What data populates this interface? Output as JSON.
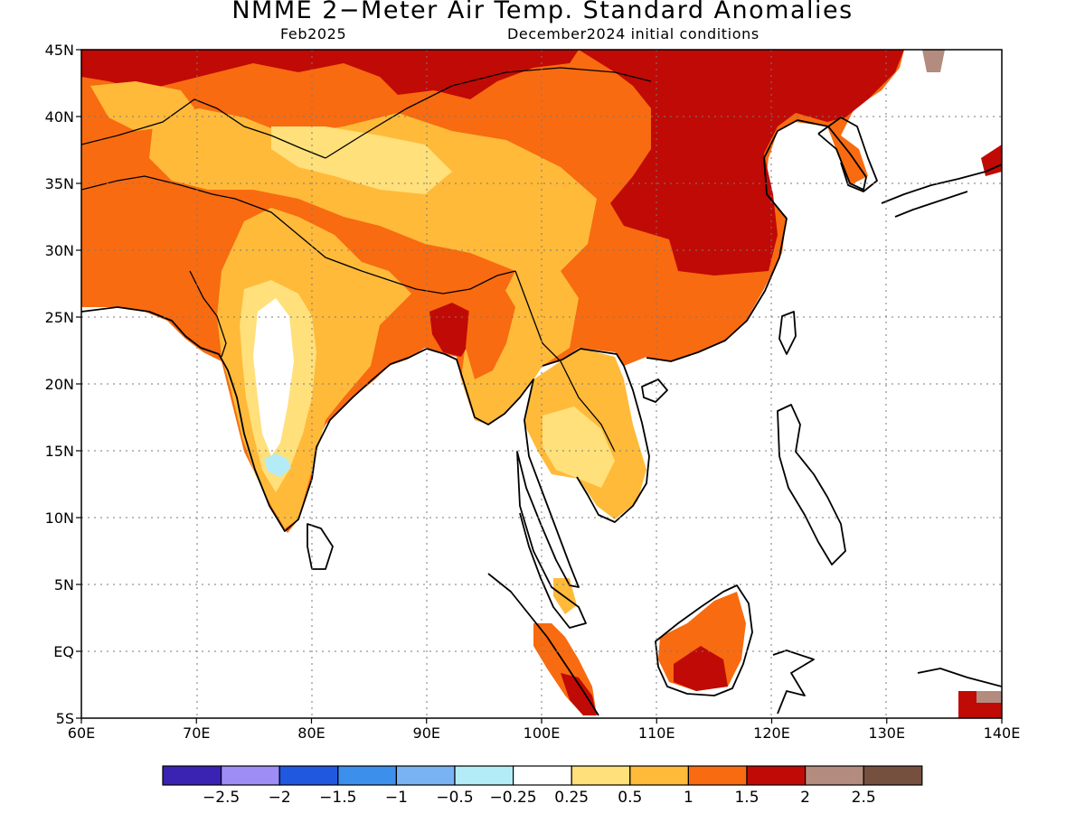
{
  "title": "NMME 2−Meter Air Temp. Standard Anomalies",
  "subtitle_left": "Feb2025",
  "subtitle_right": "December2024 initial conditions",
  "map": {
    "lon_range": [
      60,
      140
    ],
    "lat_range": [
      -5,
      45
    ],
    "lon_ticks": [
      "60E",
      "70E",
      "80E",
      "90E",
      "100E",
      "110E",
      "120E",
      "130E",
      "140E"
    ],
    "lat_ticks": [
      "45N",
      "40N",
      "35N",
      "30N",
      "25N",
      "20N",
      "15N",
      "10N",
      "5N",
      "EQ",
      "5S"
    ],
    "gridlines": "dotted"
  },
  "colorbar": {
    "colors": [
      "#3a22b3",
      "#9d8df5",
      "#2058e0",
      "#3d8fec",
      "#79b3f3",
      "#b3ecf7",
      "#ffffff",
      "#ffe07a",
      "#ffba3a",
      "#f86b10",
      "#c00a06",
      "#b38b7f",
      "#76503f"
    ],
    "labels": [
      "−2.5",
      "−2",
      "−1.5",
      "−1",
      "−0.5",
      "−0.25",
      "0.25",
      "0.5",
      "1",
      "1.5",
      "2",
      "2.5"
    ]
  }
}
